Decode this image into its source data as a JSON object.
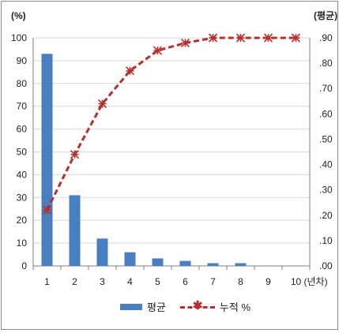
{
  "chart_data": {
    "type": "bar",
    "categories": [
      "1",
      "2",
      "3",
      "4",
      "5",
      "6",
      "7",
      "8",
      "9",
      "10"
    ],
    "series": [
      {
        "name": "평균",
        "type": "bar",
        "axis": "left",
        "values": [
          93,
          31,
          12,
          6,
          3.3,
          2.2,
          1.2,
          1.2,
          0,
          0
        ]
      },
      {
        "name": "누적 %",
        "type": "line",
        "axis": "right",
        "values": [
          0.22,
          0.44,
          0.64,
          0.77,
          0.85,
          0.88,
          0.9,
          0.9,
          0.9,
          0.9
        ]
      }
    ],
    "y_left": {
      "unit_label": "(%)",
      "range": [
        0,
        100
      ],
      "ticks": [
        "0",
        "10",
        "20",
        "30",
        "40",
        "50",
        "60",
        "70",
        "80",
        "90",
        "100"
      ]
    },
    "y_right": {
      "unit_label": "(평균)",
      "range": [
        0,
        0.9
      ],
      "ticks": [
        ".00",
        ".10",
        ".20",
        ".30",
        ".40",
        ".50",
        ".60",
        ".70",
        ".80",
        ".90"
      ]
    },
    "x_unit_label": "(년차)",
    "colors": {
      "bar": "#4a7ec3",
      "line": "#b5302e",
      "grid": "#d9d9d9",
      "axis": "#7f7f7f"
    },
    "grid": true,
    "legend_position": "bottom"
  }
}
